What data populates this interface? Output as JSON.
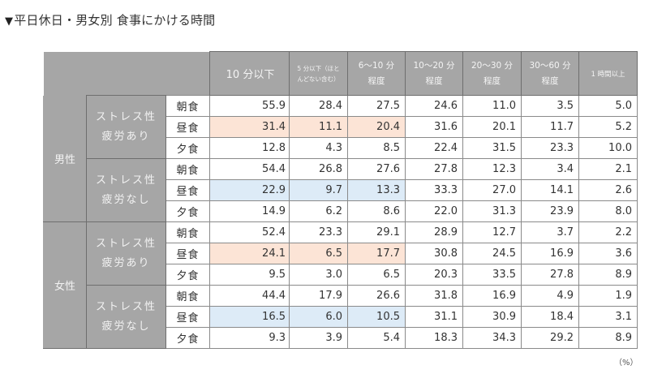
{
  "title": {
    "marker": "▼",
    "text": "平日休日・男女別 食事にかける時間"
  },
  "headers": {
    "col_10min_or_less": "10 分以下",
    "col_5min_line1": "5 分以下（ほと",
    "col_5min_line2": "んどない含む）",
    "col_6_10_line1": "6～10 分",
    "col_6_10_line2": "程度",
    "col_10_20_line1": "10～20 分",
    "col_10_20_line2": "程度",
    "col_20_30_line1": "20～30 分",
    "col_20_30_line2": "程度",
    "col_30_60_line1": "30～60 分",
    "col_30_60_line2": "程度",
    "col_1h_plus": "1 時間以上"
  },
  "groups": [
    {
      "gender": "男性",
      "subgroups": [
        {
          "stress_line1": "ストレス性",
          "stress_line2": "疲労あり",
          "rows": [
            {
              "meal": "朝食",
              "v10": "55.9",
              "v5": "28.4",
              "v6_10": "27.5",
              "v10_20": "24.6",
              "v20_30": "11.0",
              "v30_60": "3.5",
              "v60": "5.0"
            },
            {
              "meal": "昼食",
              "v10": "31.4",
              "v5": "11.1",
              "v6_10": "20.4",
              "v10_20": "31.6",
              "v20_30": "20.1",
              "v30_60": "11.7",
              "v60": "5.2"
            },
            {
              "meal": "夕食",
              "v10": "12.8",
              "v5": "4.3",
              "v6_10": "8.5",
              "v10_20": "22.4",
              "v20_30": "31.5",
              "v30_60": "23.3",
              "v60": "10.0"
            }
          ]
        },
        {
          "stress_line1": "ストレス性",
          "stress_line2": "疲労なし",
          "rows": [
            {
              "meal": "朝食",
              "v10": "54.4",
              "v5": "26.8",
              "v6_10": "27.6",
              "v10_20": "27.8",
              "v20_30": "12.3",
              "v30_60": "3.4",
              "v60": "2.1"
            },
            {
              "meal": "昼食",
              "v10": "22.9",
              "v5": "9.7",
              "v6_10": "13.3",
              "v10_20": "33.3",
              "v20_30": "27.0",
              "v30_60": "14.1",
              "v60": "2.6"
            },
            {
              "meal": "夕食",
              "v10": "14.9",
              "v5": "6.2",
              "v6_10": "8.6",
              "v10_20": "22.0",
              "v20_30": "31.3",
              "v30_60": "23.9",
              "v60": "8.0"
            }
          ]
        }
      ]
    },
    {
      "gender": "女性",
      "subgroups": [
        {
          "stress_line1": "ストレス性",
          "stress_line2": "疲労あり",
          "rows": [
            {
              "meal": "朝食",
              "v10": "52.4",
              "v5": "23.3",
              "v6_10": "29.1",
              "v10_20": "28.9",
              "v20_30": "12.7",
              "v30_60": "3.7",
              "v60": "2.2"
            },
            {
              "meal": "昼食",
              "v10": "24.1",
              "v5": "6.5",
              "v6_10": "17.7",
              "v10_20": "30.8",
              "v20_30": "24.5",
              "v30_60": "16.9",
              "v60": "3.6"
            },
            {
              "meal": "夕食",
              "v10": "9.5",
              "v5": "3.0",
              "v6_10": "6.5",
              "v10_20": "20.3",
              "v20_30": "33.5",
              "v30_60": "27.8",
              "v60": "8.9"
            }
          ]
        },
        {
          "stress_line1": "ストレス性",
          "stress_line2": "疲労なし",
          "rows": [
            {
              "meal": "朝食",
              "v10": "44.4",
              "v5": "17.9",
              "v6_10": "26.6",
              "v10_20": "31.8",
              "v20_30": "16.9",
              "v30_60": "4.9",
              "v60": "1.9"
            },
            {
              "meal": "昼食",
              "v10": "16.5",
              "v5": "6.0",
              "v6_10": "10.5",
              "v10_20": "31.1",
              "v20_30": "30.9",
              "v30_60": "18.4",
              "v60": "3.1"
            },
            {
              "meal": "夕食",
              "v10": "9.3",
              "v5": "3.9",
              "v6_10": "5.4",
              "v10_20": "18.3",
              "v20_30": "34.3",
              "v30_60": "29.2",
              "v60": "8.9"
            }
          ]
        }
      ]
    }
  ],
  "highlight_colors": {
    "stress_yes_lunch": "#fce4d6",
    "stress_no_lunch": "#ddebf7",
    "header_gray": "#a6a6a6"
  },
  "unit_label": "（%）"
}
